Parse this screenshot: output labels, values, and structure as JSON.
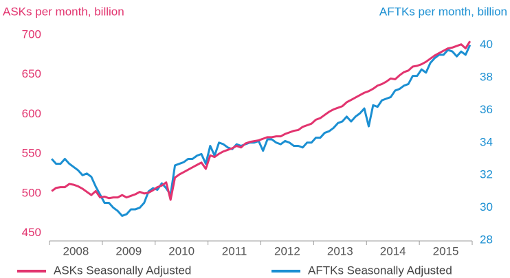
{
  "chart_data": {
    "type": "line",
    "title_left": "ASKs per month, billion",
    "title_right": "AFTKs per month, billion",
    "categories": [
      null,
      null,
      null,
      null,
      null,
      null,
      "2008",
      null,
      null,
      null,
      null,
      null,
      null,
      null,
      null,
      null,
      null,
      null,
      "2009",
      null,
      null,
      null,
      null,
      null,
      null,
      null,
      null,
      null,
      null,
      null,
      "2010",
      null,
      null,
      null,
      null,
      null,
      null,
      null,
      null,
      null,
      null,
      null,
      "2011",
      null,
      null,
      null,
      null,
      null,
      null,
      null,
      null,
      null,
      null,
      null,
      "2012",
      null,
      null,
      null,
      null,
      null,
      null,
      null,
      null,
      null,
      null,
      null,
      "2013",
      null,
      null,
      null,
      null,
      null,
      null,
      null,
      null,
      null,
      null,
      null,
      "2014",
      null,
      null,
      null,
      null,
      null,
      null,
      null,
      null,
      null,
      null,
      null,
      "2015",
      null,
      null,
      null,
      null,
      null
    ],
    "series": [
      {
        "name": "ASKs Seasonally Adjusted",
        "color": "#e2346f",
        "axis": "y",
        "values": [
          503,
          507,
          508,
          508,
          512,
          511,
          509,
          506,
          502,
          498,
          503,
          495,
          496,
          494,
          495,
          495,
          498,
          495,
          497,
          499,
          502,
          500,
          501,
          504,
          508,
          510,
          514,
          492,
          520,
          524,
          527,
          530,
          533,
          536,
          539,
          531,
          548,
          546,
          550,
          553,
          555,
          557,
          560,
          558,
          563,
          565,
          566,
          567,
          569,
          571,
          571,
          572,
          572,
          575,
          577,
          579,
          580,
          584,
          586,
          588,
          593,
          595,
          599,
          603,
          606,
          608,
          610,
          615,
          618,
          621,
          624,
          627,
          629,
          632,
          636,
          638,
          641,
          645,
          644,
          649,
          653,
          655,
          660,
          661,
          663,
          666,
          670,
          674,
          677,
          680,
          683,
          684,
          686,
          688,
          683,
          692
        ]
      },
      {
        "name": "AFTKs Seasonally Adjusted",
        "color": "#1b8fd2",
        "axis": "y2",
        "values": [
          33.0,
          32.7,
          32.7,
          33.0,
          32.7,
          32.5,
          32.3,
          32.0,
          32.1,
          31.9,
          31.3,
          30.8,
          30.3,
          30.3,
          30.0,
          29.8,
          29.5,
          29.6,
          29.9,
          29.9,
          30.0,
          30.3,
          31.0,
          31.2,
          31.1,
          31.5,
          31.2,
          30.8,
          32.6,
          32.7,
          32.8,
          33.0,
          33.0,
          33.2,
          33.3,
          32.7,
          33.8,
          33.2,
          34.0,
          33.9,
          33.7,
          33.6,
          33.9,
          33.8,
          33.9,
          34.0,
          34.0,
          34.1,
          33.5,
          34.2,
          34.2,
          34.0,
          33.9,
          34.1,
          34.0,
          33.8,
          33.8,
          33.7,
          34.0,
          34.0,
          34.3,
          34.3,
          34.6,
          34.7,
          34.9,
          35.2,
          35.3,
          35.6,
          35.3,
          35.6,
          35.8,
          36.1,
          35.0,
          36.3,
          36.2,
          36.6,
          36.7,
          36.8,
          37.2,
          37.3,
          37.5,
          37.6,
          38.1,
          38.1,
          38.5,
          38.3,
          38.9,
          39.2,
          39.4,
          39.4,
          39.7,
          39.6,
          39.3,
          39.6,
          39.4,
          40.0
        ]
      }
    ],
    "ylim": [
      441,
      718
    ],
    "yticks": [
      450,
      500,
      550,
      600,
      650,
      700
    ],
    "y2lim": [
      28,
      41.5
    ],
    "y2ticks": [
      28,
      30,
      32,
      34,
      36,
      38,
      40
    ],
    "grid": false,
    "legend": "bottom"
  }
}
